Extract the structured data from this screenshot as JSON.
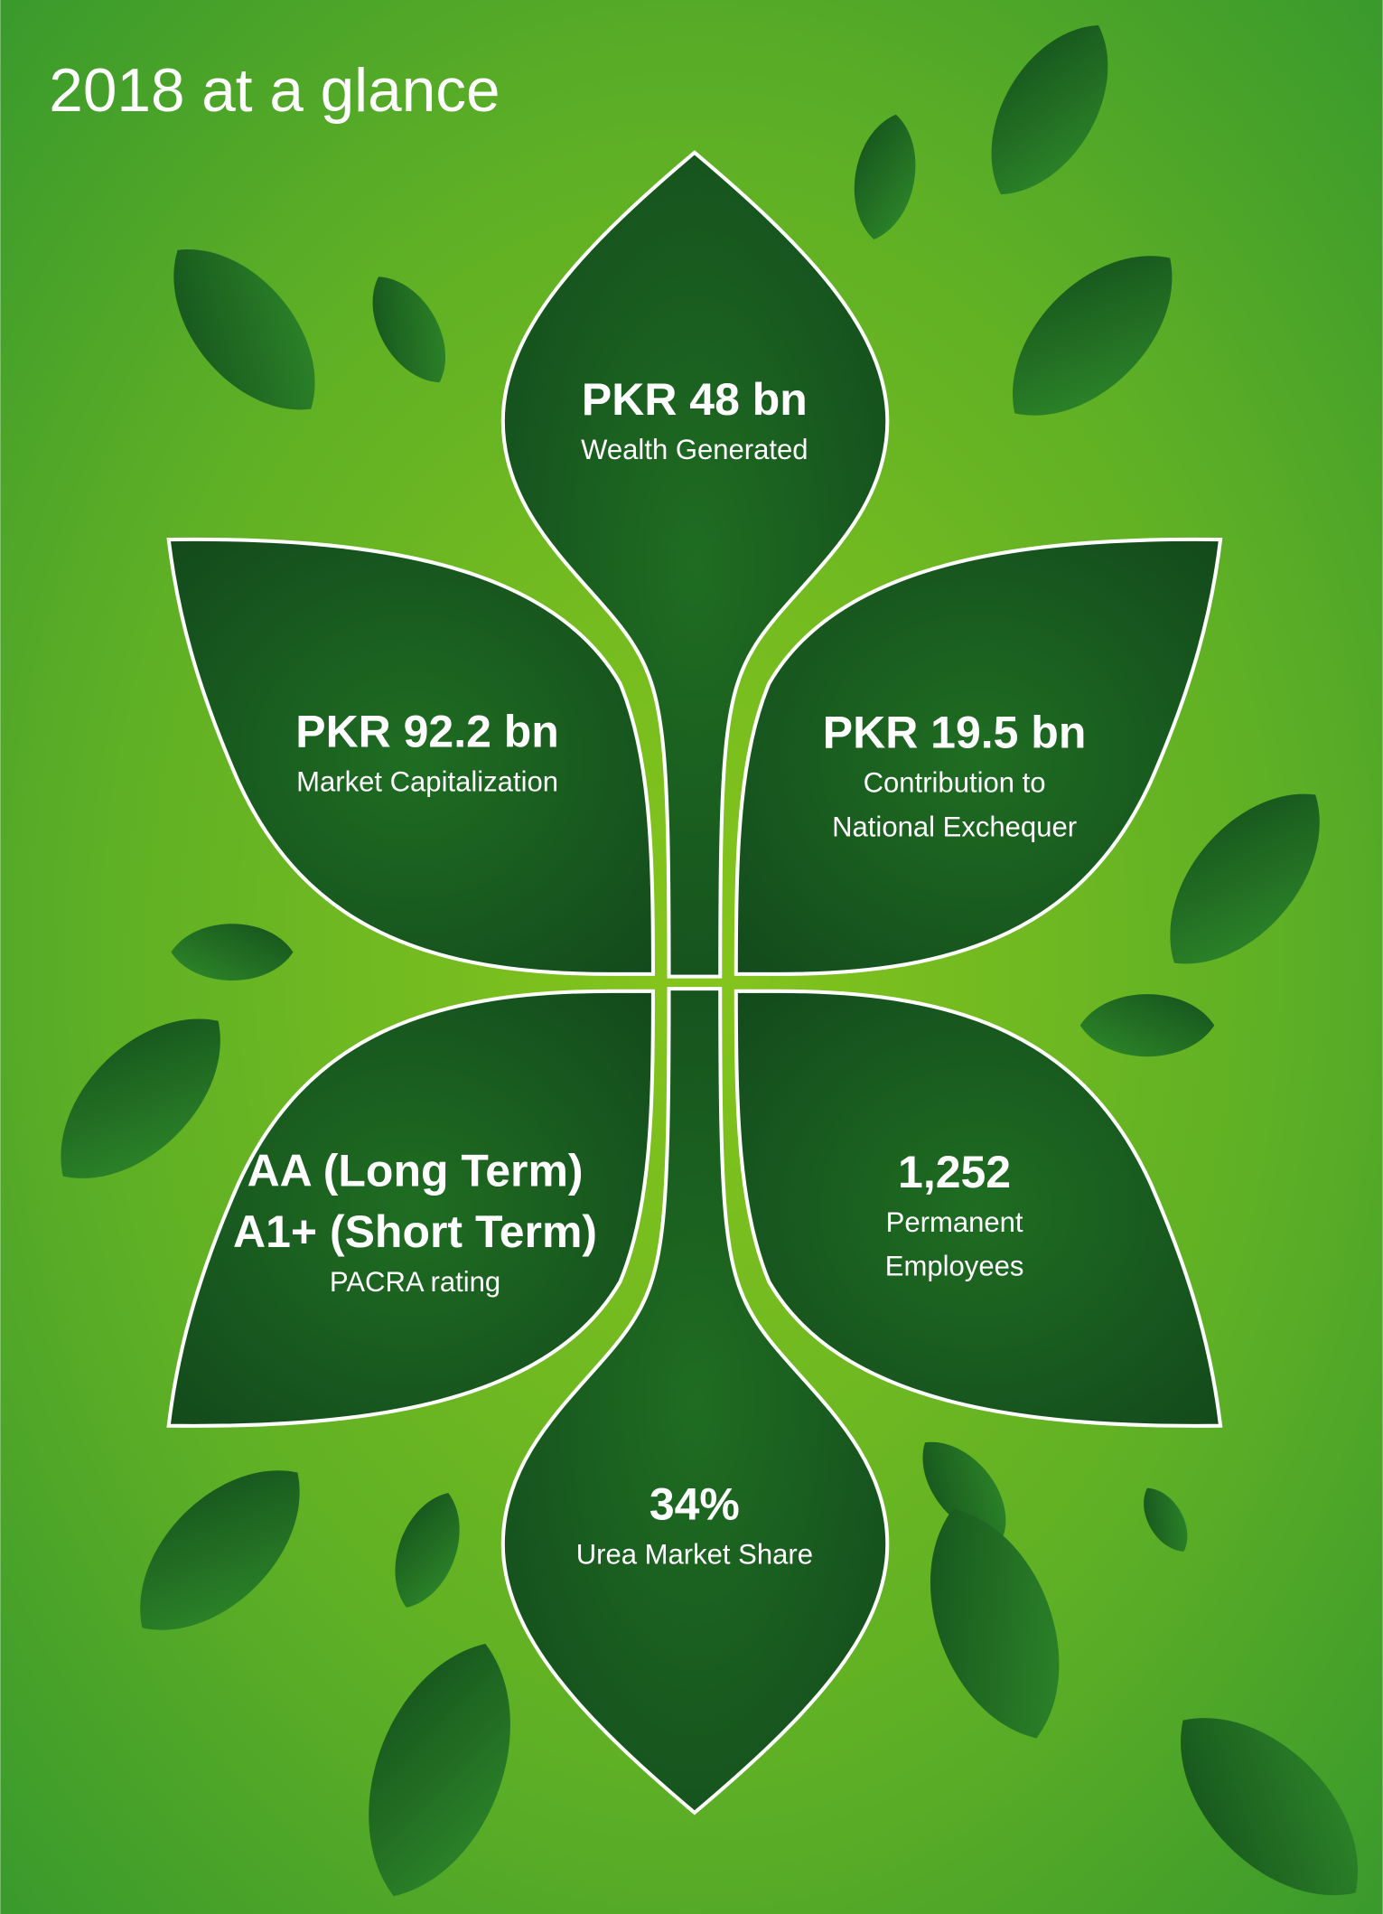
{
  "title": "2018 at a glance",
  "highlights": [
    {
      "value": [
        "PKR 48 bn"
      ],
      "label": [
        "Wealth Generated"
      ]
    },
    {
      "value": [
        "PKR 92.2 bn"
      ],
      "label": [
        "Market Capitalization"
      ]
    },
    {
      "value": [
        "PKR 19.5 bn"
      ],
      "label": [
        "Contribution to",
        "National Exchequer"
      ]
    },
    {
      "value": [
        "AA (Long Term)",
        "A1+ (Short Term)"
      ],
      "label": [
        "PACRA rating"
      ]
    },
    {
      "value": [
        "1,252"
      ],
      "label": [
        "Permanent",
        "Employees"
      ]
    },
    {
      "value": [
        "34%"
      ],
      "label": [
        "Urea Market Share"
      ]
    }
  ]
}
